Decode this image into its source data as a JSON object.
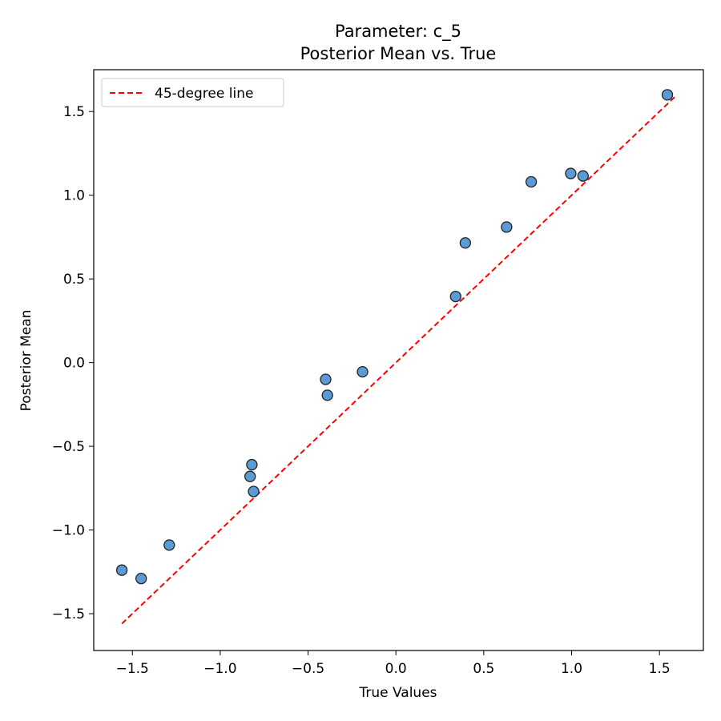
{
  "chart_data": {
    "type": "scatter",
    "title_line1": "Parameter: c_5",
    "title_line2": "Posterior Mean vs. True",
    "xlabel": "True Values",
    "ylabel": "Posterior Mean",
    "xlim": [
      -1.72,
      1.75
    ],
    "ylim": [
      -1.72,
      1.75
    ],
    "xticks": [
      -1.5,
      -1.0,
      -0.5,
      0.0,
      0.5,
      1.0,
      1.5
    ],
    "xtick_labels": [
      "−1.5",
      "−1.0",
      "−0.5",
      "0.0",
      "0.5",
      "1.0",
      "1.5"
    ],
    "yticks": [
      -1.5,
      -1.0,
      -0.5,
      0.0,
      0.5,
      1.0,
      1.5
    ],
    "ytick_labels": [
      "−1.5",
      "−1.0",
      "−0.5",
      "0.0",
      "0.5",
      "1.0",
      "1.5"
    ],
    "grid": false,
    "legend_position": "top-left",
    "legend_label": "45-degree line",
    "reference_line": {
      "x": [
        -1.56,
        1.6
      ],
      "y": [
        -1.56,
        1.6
      ],
      "color": "#ff0000",
      "style": "dashed"
    },
    "point_color": "#5b9bd5",
    "point_edge_color": "#222222",
    "points": [
      {
        "x": -1.56,
        "y": -1.24
      },
      {
        "x": -1.45,
        "y": -1.29
      },
      {
        "x": -1.29,
        "y": -1.09
      },
      {
        "x": -0.83,
        "y": -0.68
      },
      {
        "x": -0.82,
        "y": -0.61
      },
      {
        "x": -0.81,
        "y": -0.77
      },
      {
        "x": -0.4,
        "y": -0.1
      },
      {
        "x": -0.39,
        "y": -0.195
      },
      {
        "x": -0.19,
        "y": -0.055
      },
      {
        "x": 0.34,
        "y": 0.395
      },
      {
        "x": 0.395,
        "y": 0.715
      },
      {
        "x": 0.63,
        "y": 0.81
      },
      {
        "x": 0.77,
        "y": 1.08
      },
      {
        "x": 0.995,
        "y": 1.13
      },
      {
        "x": 1.065,
        "y": 1.115
      },
      {
        "x": 1.545,
        "y": 1.6
      }
    ]
  }
}
